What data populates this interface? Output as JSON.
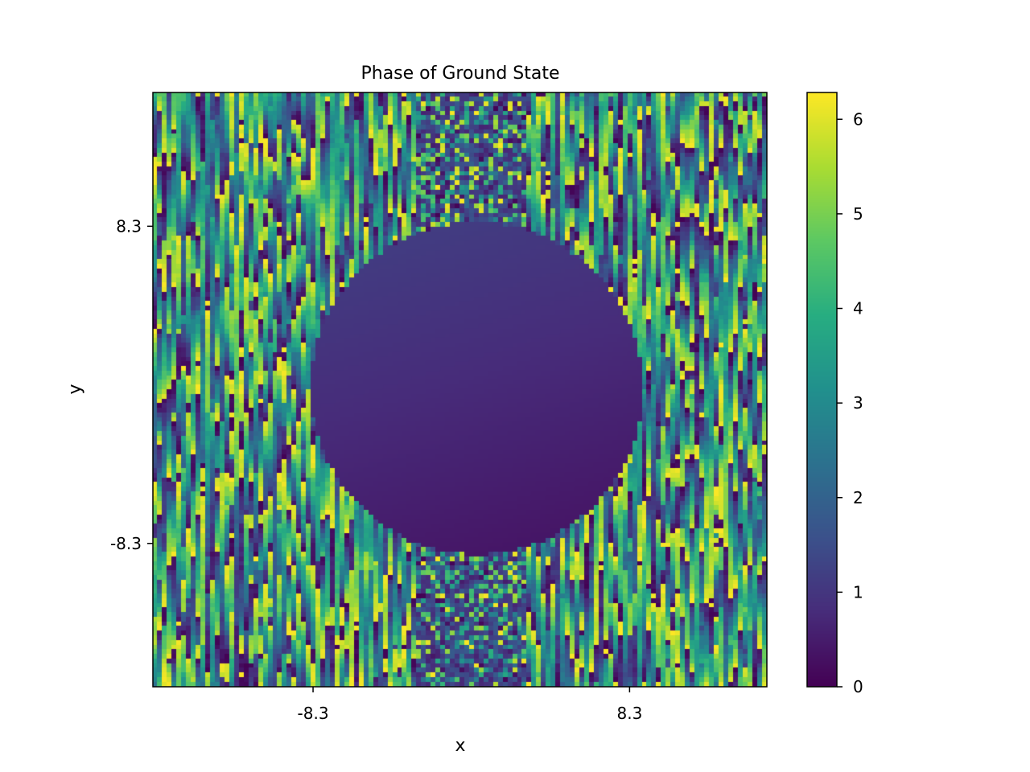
{
  "chart_data": {
    "type": "heatmap",
    "title": "Phase of Ground State",
    "xlabel": "x",
    "ylabel": "y",
    "x_ticks": [
      {
        "value": -8.3,
        "label": "-8.3"
      },
      {
        "value": 8.3,
        "label": "8.3"
      }
    ],
    "y_ticks": [
      {
        "value": 8.3,
        "label": "8.3"
      },
      {
        "value": -8.3,
        "label": "-8.3"
      }
    ],
    "xlim": [
      -16.7,
      15.5
    ],
    "ylim": [
      -15.8,
      15.3
    ],
    "colormap": "viridis",
    "colorbar": {
      "vmin": 0,
      "vmax": 6.283,
      "ticks": [
        {
          "value": 0,
          "label": "0"
        },
        {
          "value": 1,
          "label": "1"
        },
        {
          "value": 2,
          "label": "2"
        },
        {
          "value": 3,
          "label": "3"
        },
        {
          "value": 4,
          "label": "4"
        },
        {
          "value": 5,
          "label": "5"
        },
        {
          "value": 6,
          "label": "6"
        }
      ]
    },
    "grid": false,
    "regions": {
      "condensate_disk": {
        "center": [
          0.3,
          -0.2
        ],
        "radius": 8.7,
        "phase_range": [
          0.3,
          1.2
        ]
      },
      "noisy_phase_background": {
        "phase_range": [
          0,
          6.283
        ]
      },
      "speckled_strips": {
        "x_range": [
          -2.8,
          3.0
        ]
      }
    }
  }
}
